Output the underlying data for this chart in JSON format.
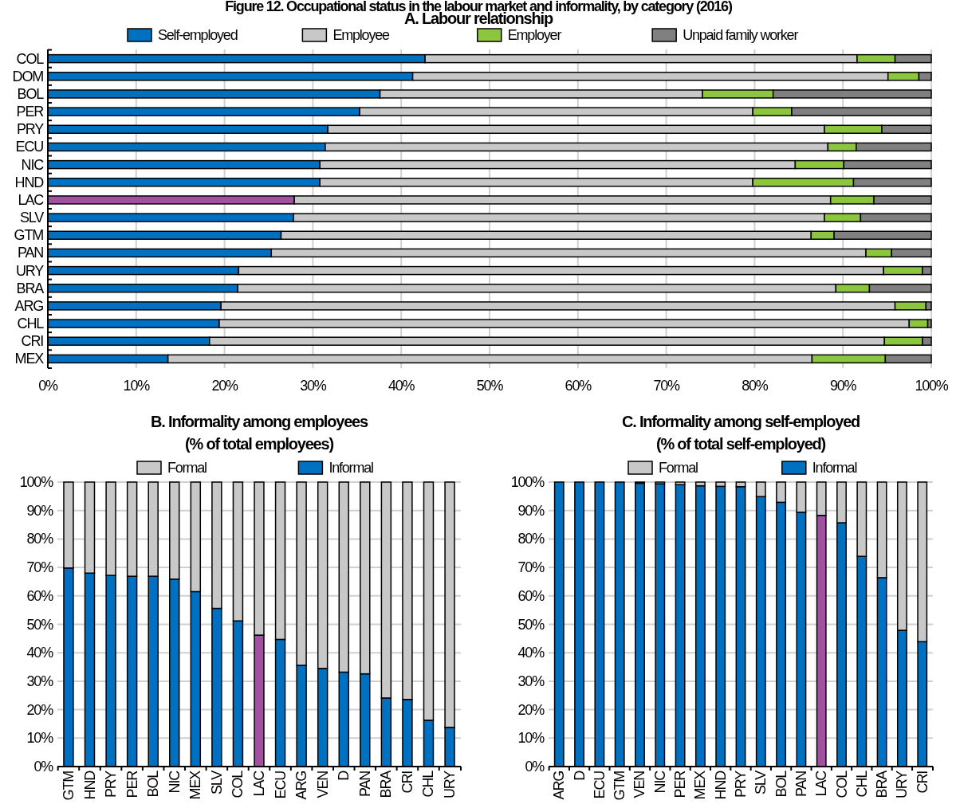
{
  "chart_data": [
    {
      "type": "bar",
      "title": "Figure 12. Occupational status in the labour market and informality, by category (2016)",
      "subtitle": "A. Labour relationship",
      "orientation": "horizontal",
      "stacked": true,
      "legend": "top",
      "grid": "x",
      "categories": [
        "COL",
        "DOM",
        "BOL",
        "PER",
        "PRY",
        "ECU",
        "NIC",
        "HND",
        "LAC",
        "SLV",
        "GTM",
        "PAN",
        "URY",
        "BRA",
        "ARG",
        "CHL",
        "CRI",
        "MEX"
      ],
      "xlim": [
        0,
        100
      ],
      "xticks": [
        {
          "value": 0,
          "label": "0%"
        },
        {
          "value": 10,
          "label": "10%"
        },
        {
          "value": 20,
          "label": "20%"
        },
        {
          "value": 30,
          "label": "30%"
        },
        {
          "value": 40,
          "label": "40%"
        },
        {
          "value": 50,
          "label": "50%"
        },
        {
          "value": 60,
          "label": "60%"
        },
        {
          "value": 70,
          "label": "70%"
        },
        {
          "value": 80,
          "label": "80%"
        },
        {
          "value": 90,
          "label": "90%"
        },
        {
          "value": 100,
          "label": "100%"
        }
      ],
      "series": [
        {
          "name": "Self-employed",
          "color": "#0070c0",
          "colors": [
            "#0070c0",
            "#0070c0",
            "#0070c0",
            "#0070c0",
            "#0070c0",
            "#0070c0",
            "#0070c0",
            "#0070c0",
            "#a052a0",
            "#0070c0",
            "#0070c0",
            "#0070c0",
            "#0070c0",
            "#0070c0",
            "#0070c0",
            "#0070c0",
            "#0070c0",
            "#0070c0"
          ],
          "values": [
            42.7,
            41.3,
            37.6,
            35.3,
            31.7,
            31.4,
            30.8,
            30.8,
            27.9,
            27.8,
            26.4,
            25.3,
            21.6,
            21.5,
            19.6,
            19.4,
            18.3,
            13.6
          ]
        },
        {
          "name": "Employee",
          "color": "#c8c8c8",
          "values": [
            48.9,
            53.8,
            36.5,
            44.5,
            56.2,
            56.9,
            53.8,
            49.0,
            60.7,
            60.1,
            60.0,
            67.3,
            73.0,
            67.7,
            76.3,
            78.1,
            76.4,
            72.9
          ]
        },
        {
          "name": "Employer",
          "color": "#8cc63f",
          "values": [
            4.3,
            3.5,
            8.0,
            4.4,
            6.5,
            3.2,
            5.5,
            11.4,
            4.9,
            4.1,
            2.6,
            2.9,
            4.4,
            3.8,
            3.5,
            2.1,
            4.3,
            8.3
          ]
        },
        {
          "name": "Unpaid family worker",
          "color": "#808080",
          "values": [
            4.1,
            1.4,
            17.9,
            15.8,
            5.6,
            8.5,
            9.9,
            8.8,
            6.5,
            8.0,
            11.0,
            4.5,
            1.0,
            7.0,
            0.6,
            0.4,
            1.0,
            5.2
          ]
        }
      ]
    },
    {
      "type": "bar",
      "title": "B. Informality among employees",
      "subtitle": "(% of total employees)",
      "stacked": true,
      "legend": "top",
      "grid": "y",
      "categories": [
        "GTM",
        "HND",
        "PRY",
        "PER",
        "BOL",
        "NIC",
        "MEX",
        "SLV",
        "COL",
        "LAC",
        "ECU",
        "ARG",
        "VEN",
        "D",
        "PAN",
        "BRA",
        "CRI",
        "CHL",
        "URY"
      ],
      "ylim": [
        0,
        100
      ],
      "yticks": [
        {
          "value": 0,
          "label": "0%"
        },
        {
          "value": 10,
          "label": "10%"
        },
        {
          "value": 20,
          "label": "20%"
        },
        {
          "value": 30,
          "label": "30%"
        },
        {
          "value": 40,
          "label": "40%"
        },
        {
          "value": 50,
          "label": "50%"
        },
        {
          "value": 60,
          "label": "60%"
        },
        {
          "value": 70,
          "label": "70%"
        },
        {
          "value": 80,
          "label": "80%"
        },
        {
          "value": 90,
          "label": "90%"
        },
        {
          "value": 100,
          "label": "100%"
        }
      ],
      "series": [
        {
          "name": "Informal",
          "color": "#0070c0",
          "colors": [
            "#0070c0",
            "#0070c0",
            "#0070c0",
            "#0070c0",
            "#0070c0",
            "#0070c0",
            "#0070c0",
            "#0070c0",
            "#0070c0",
            "#a052a0",
            "#0070c0",
            "#0070c0",
            "#0070c0",
            "#0070c0",
            "#0070c0",
            "#0070c0",
            "#0070c0",
            "#0070c0",
            "#0070c0"
          ],
          "values": [
            69.8,
            68.0,
            67.2,
            66.9,
            66.9,
            65.9,
            61.5,
            55.6,
            51.2,
            46.2,
            44.7,
            35.6,
            34.5,
            33.2,
            32.6,
            24.1,
            23.6,
            16.3,
            13.8
          ]
        },
        {
          "name": "Formal",
          "color": "#c8c8c8",
          "values": [
            30.2,
            32.0,
            32.8,
            33.1,
            33.1,
            34.1,
            38.5,
            44.4,
            48.8,
            53.8,
            55.3,
            64.4,
            65.5,
            66.8,
            67.4,
            75.9,
            76.4,
            83.7,
            86.2
          ]
        }
      ]
    },
    {
      "type": "bar",
      "title": "C. Informality among self-employed",
      "subtitle": "(% of total self-employed)",
      "stacked": true,
      "legend": "top",
      "grid": "y",
      "categories": [
        "ARG",
        "D",
        "ECU",
        "GTM",
        "VEN",
        "NIC",
        "PER",
        "MEX",
        "HND",
        "PRY",
        "SLV",
        "BOL",
        "PAN",
        "LAC",
        "COL",
        "CHL",
        "BRA",
        "URY",
        "CRI"
      ],
      "ylim": [
        0,
        100
      ],
      "yticks": [
        {
          "value": 0,
          "label": "0%"
        },
        {
          "value": 10,
          "label": "10%"
        },
        {
          "value": 20,
          "label": "20%"
        },
        {
          "value": 30,
          "label": "30%"
        },
        {
          "value": 40,
          "label": "40%"
        },
        {
          "value": 50,
          "label": "50%"
        },
        {
          "value": 60,
          "label": "60%"
        },
        {
          "value": 70,
          "label": "70%"
        },
        {
          "value": 80,
          "label": "80%"
        },
        {
          "value": 90,
          "label": "90%"
        },
        {
          "value": 100,
          "label": "100%"
        }
      ],
      "series": [
        {
          "name": "Informal",
          "color": "#0070c0",
          "colors": [
            "#0070c0",
            "#0070c0",
            "#0070c0",
            "#0070c0",
            "#0070c0",
            "#0070c0",
            "#0070c0",
            "#0070c0",
            "#0070c0",
            "#0070c0",
            "#0070c0",
            "#0070c0",
            "#0070c0",
            "#a052a0",
            "#0070c0",
            "#0070c0",
            "#0070c0",
            "#0070c0",
            "#0070c0"
          ],
          "values": [
            100,
            100,
            100,
            100,
            99.6,
            99.4,
            99.1,
            98.7,
            98.5,
            98.4,
            94.9,
            92.9,
            89.4,
            88.3,
            85.7,
            73.9,
            66.4,
            47.9,
            43.9
          ]
        },
        {
          "name": "Formal",
          "color": "#c8c8c8",
          "values": [
            0,
            0,
            0,
            0,
            0.4,
            0.6,
            0.9,
            1.3,
            1.5,
            1.6,
            5.1,
            7.1,
            10.6,
            11.7,
            14.3,
            26.1,
            33.6,
            52.1,
            56.1
          ]
        }
      ]
    }
  ]
}
